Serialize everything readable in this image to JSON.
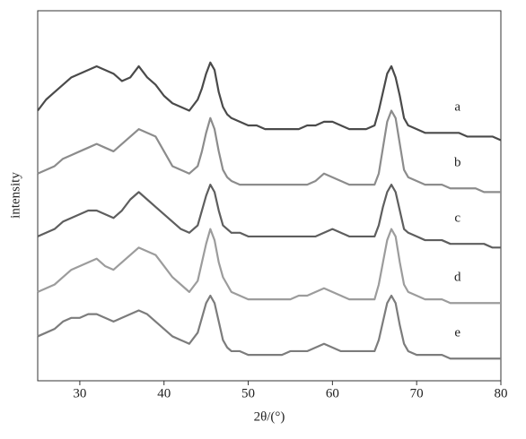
{
  "chart_data": {
    "type": "line",
    "xlabel": "2θ/(°)",
    "ylabel": "intensity",
    "x": [
      25,
      26,
      27,
      28,
      29,
      30,
      31,
      32,
      33,
      34,
      35,
      36,
      37,
      38,
      39,
      40,
      41,
      42,
      43,
      44,
      44.5,
      45,
      45.5,
      46,
      46.5,
      47,
      47.5,
      48,
      49,
      50,
      51,
      52,
      53,
      54,
      55,
      56,
      57,
      58,
      59,
      60,
      61,
      62,
      63,
      64,
      65,
      65.5,
      66,
      66.5,
      67,
      67.5,
      68,
      68.5,
      69,
      70,
      71,
      72,
      73,
      74,
      75,
      76,
      77,
      78,
      79,
      80
    ],
    "series": [
      {
        "name": "a",
        "color": "#4a4a4a",
        "values": [
          73,
          76,
          78,
          80,
          82,
          83,
          84,
          85,
          84,
          83,
          81,
          82,
          85,
          82,
          80,
          77,
          75,
          74,
          73,
          76,
          79,
          83,
          86,
          84,
          78,
          74,
          72,
          71,
          70,
          69,
          69,
          68,
          68,
          68,
          68,
          68,
          69,
          69,
          70,
          70,
          69,
          68,
          68,
          68,
          69,
          73,
          78,
          83,
          85,
          82,
          77,
          71,
          69,
          68,
          67,
          67,
          67,
          67,
          67,
          66,
          66,
          66,
          66,
          65
        ]
      },
      {
        "name": "b",
        "color": "#8c8c8c",
        "values": [
          56,
          57,
          58,
          60,
          61,
          62,
          63,
          64,
          63,
          62,
          64,
          66,
          68,
          67,
          66,
          62,
          58,
          57,
          56,
          58,
          62,
          67,
          71,
          68,
          62,
          57,
          55,
          54,
          53,
          53,
          53,
          53,
          53,
          53,
          53,
          53,
          53,
          54,
          56,
          55,
          54,
          53,
          53,
          53,
          53,
          56,
          63,
          70,
          73,
          71,
          64,
          57,
          55,
          54,
          53,
          53,
          53,
          52,
          52,
          52,
          52,
          51,
          51,
          51
        ]
      },
      {
        "name": "c",
        "color": "#5e5e5e",
        "values": [
          39,
          40,
          41,
          43,
          44,
          45,
          46,
          46,
          45,
          44,
          46,
          49,
          51,
          49,
          47,
          45,
          43,
          41,
          40,
          42,
          46,
          50,
          53,
          51,
          46,
          42,
          41,
          40,
          40,
          39,
          39,
          39,
          39,
          39,
          39,
          39,
          39,
          39,
          40,
          41,
          40,
          39,
          39,
          39,
          39,
          42,
          47,
          51,
          53,
          51,
          46,
          41,
          40,
          39,
          38,
          38,
          38,
          37,
          37,
          37,
          37,
          37,
          36,
          36
        ]
      },
      {
        "name": "d",
        "color": "#9c9c9c",
        "values": [
          24,
          25,
          26,
          28,
          30,
          31,
          32,
          33,
          31,
          30,
          32,
          34,
          36,
          35,
          34,
          31,
          28,
          26,
          24,
          27,
          32,
          37,
          41,
          38,
          32,
          28,
          26,
          24,
          23,
          22,
          22,
          22,
          22,
          22,
          22,
          23,
          23,
          24,
          25,
          24,
          23,
          22,
          22,
          22,
          22,
          26,
          32,
          38,
          41,
          39,
          32,
          26,
          24,
          23,
          22,
          22,
          22,
          21,
          21,
          21,
          21,
          21,
          21,
          21
        ]
      },
      {
        "name": "e",
        "color": "#7c7c7c",
        "values": [
          12,
          13,
          14,
          16,
          17,
          17,
          18,
          18,
          17,
          16,
          17,
          18,
          19,
          18,
          16,
          14,
          12,
          11,
          10,
          13,
          17,
          21,
          23,
          21,
          16,
          11,
          9,
          8,
          8,
          7,
          7,
          7,
          7,
          7,
          8,
          8,
          8,
          9,
          10,
          9,
          8,
          8,
          8,
          8,
          8,
          11,
          16,
          21,
          23,
          21,
          15,
          10,
          8,
          7,
          7,
          7,
          7,
          6,
          6,
          6,
          6,
          6,
          6,
          6
        ]
      }
    ],
    "xlim": [
      25,
      80
    ],
    "xticks": [
      30,
      40,
      50,
      60,
      70,
      80
    ],
    "ylim": [
      0,
      100
    ]
  }
}
